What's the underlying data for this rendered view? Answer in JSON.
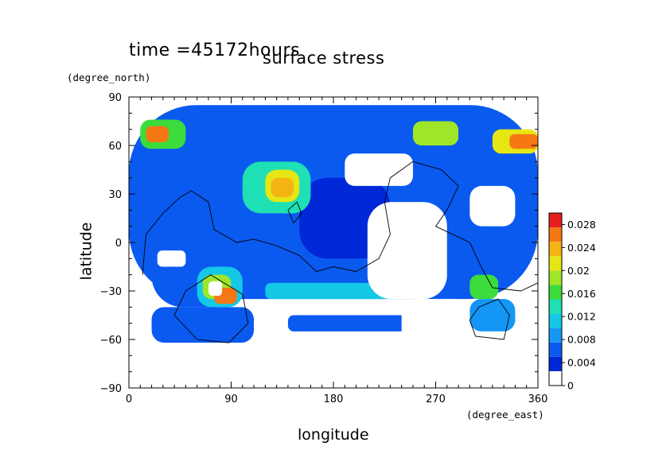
{
  "header": {
    "time_label": "time =45172hours",
    "title": "surface stress"
  },
  "chart_data": {
    "type": "heatmap",
    "title": "surface stress",
    "xlabel": "longitude",
    "ylabel": "latitude",
    "x_unit": "(degree_east)",
    "y_unit": "(degree_north)",
    "xlim": [
      0,
      360
    ],
    "ylim": [
      -90,
      90
    ],
    "x_ticks": [
      0,
      90,
      180,
      270,
      360
    ],
    "y_ticks": [
      90,
      60,
      30,
      0,
      -30,
      -60,
      -90
    ],
    "x_tick_labels": [
      "0",
      "90",
      "180",
      "270",
      "360"
    ],
    "y_tick_labels": [
      "90",
      "60",
      "30",
      "0",
      "−30",
      "−60",
      "−90"
    ],
    "colorbar": {
      "min": 0,
      "max": 0.03,
      "ticks": [
        0,
        0.004,
        0.008,
        0.012,
        0.016,
        0.02,
        0.024,
        0.028
      ],
      "tick_labels": [
        "0",
        "0.004",
        "0.008",
        "0.012",
        "0.016",
        "0.02",
        "0.024",
        "0.028"
      ],
      "colors": [
        "#ffffff",
        "#0028d8",
        "#0a5af0",
        "#1496f5",
        "#14c8e6",
        "#1ee0b4",
        "#3cdc3c",
        "#a0e628",
        "#e6e614",
        "#f5b414",
        "#f57814",
        "#e61e1e"
      ]
    },
    "regions": [
      {
        "lon": [
          0,
          360
        ],
        "lat": [
          -35,
          85
        ],
        "level": 2
      },
      {
        "lon": [
          150,
          230
        ],
        "lat": [
          -10,
          40
        ],
        "level": 1
      },
      {
        "lon": [
          20,
          100
        ],
        "lat": [
          -40,
          15
        ],
        "level": 2
      },
      {
        "lon": [
          60,
          100
        ],
        "lat": [
          -40,
          -15
        ],
        "level": 4
      },
      {
        "lon": [
          65,
          90
        ],
        "lat": [
          -35,
          -20
        ],
        "level": 7
      },
      {
        "lon": [
          75,
          95
        ],
        "lat": [
          -38,
          -28
        ],
        "level": 10
      },
      {
        "lon": [
          10,
          50
        ],
        "lat": [
          58,
          76
        ],
        "level": 6
      },
      {
        "lon": [
          15,
          35
        ],
        "lat": [
          62,
          72
        ],
        "level": 10
      },
      {
        "lon": [
          100,
          160
        ],
        "lat": [
          18,
          50
        ],
        "level": 5
      },
      {
        "lon": [
          120,
          150
        ],
        "lat": [
          25,
          45
        ],
        "level": 8
      },
      {
        "lon": [
          125,
          145
        ],
        "lat": [
          28,
          40
        ],
        "level": 9
      },
      {
        "lon": [
          250,
          290
        ],
        "lat": [
          60,
          75
        ],
        "level": 7
      },
      {
        "lon": [
          320,
          360
        ],
        "lat": [
          55,
          70
        ],
        "level": 8
      },
      {
        "lon": [
          335,
          360
        ],
        "lat": [
          58,
          67
        ],
        "level": 10
      },
      {
        "lon": [
          300,
          325
        ],
        "lat": [
          -35,
          -20
        ],
        "level": 6
      },
      {
        "lon": [
          120,
          240
        ],
        "lat": [
          -35,
          -25
        ],
        "level": 4
      },
      {
        "lon": [
          20,
          110
        ],
        "lat": [
          -62,
          -40
        ],
        "level": 2
      },
      {
        "lon": [
          140,
          250
        ],
        "lat": [
          -55,
          -45
        ],
        "level": 2
      },
      {
        "lon": [
          300,
          340
        ],
        "lat": [
          -55,
          -35
        ],
        "level": 3
      }
    ],
    "holes": [
      {
        "lon": [
          210,
          280
        ],
        "lat": [
          -35,
          25
        ]
      },
      {
        "lon": [
          240,
          300
        ],
        "lat": [
          -65,
          -35
        ]
      },
      {
        "lon": [
          190,
          250
        ],
        "lat": [
          35,
          55
        ]
      },
      {
        "lon": [
          300,
          340
        ],
        "lat": [
          10,
          35
        ]
      },
      {
        "lon": [
          25,
          50
        ],
        "lat": [
          -15,
          -5
        ]
      },
      {
        "lon": [
          70,
          82
        ],
        "lat": [
          -33,
          -24
        ]
      },
      {
        "lon": [
          0,
          360
        ],
        "lat": [
          85,
          90
        ]
      },
      {
        "lon": [
          0,
          360
        ],
        "lat": [
          -90,
          -65
        ]
      },
      {
        "lon": [
          0,
          10
        ],
        "lat": [
          -90,
          -38
        ]
      }
    ]
  }
}
